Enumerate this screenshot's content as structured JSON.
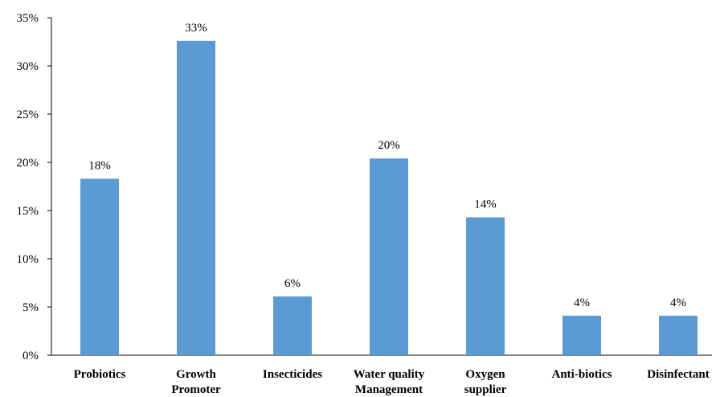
{
  "chart_data": {
    "type": "bar",
    "categories": [
      [
        "Probiotics"
      ],
      [
        "Growth",
        "Promoter"
      ],
      [
        "Insecticides"
      ],
      [
        "Water quality",
        "Management"
      ],
      [
        "Oxygen",
        "supplier"
      ],
      [
        "Anti-biotics"
      ],
      [
        "Disinfectant"
      ]
    ],
    "values": [
      18.3,
      32.6,
      6.1,
      20.4,
      14.3,
      4.1,
      4.1
    ],
    "data_labels": [
      "18%",
      "33%",
      "6%",
      "20%",
      "14%",
      "4%",
      "4%"
    ],
    "y_ticks": [
      {
        "value": 0,
        "label": "0%"
      },
      {
        "value": 5,
        "label": "5%"
      },
      {
        "value": 10,
        "label": "10%"
      },
      {
        "value": 15,
        "label": "15%"
      },
      {
        "value": 20,
        "label": "20%"
      },
      {
        "value": 25,
        "label": "25%"
      },
      {
        "value": 30,
        "label": "30%"
      },
      {
        "value": 35,
        "label": "35%"
      }
    ],
    "ylim": [
      0,
      35
    ],
    "title": "",
    "xlabel": "",
    "ylabel": "",
    "grid": false,
    "bar_color": "#5B9BD5"
  }
}
